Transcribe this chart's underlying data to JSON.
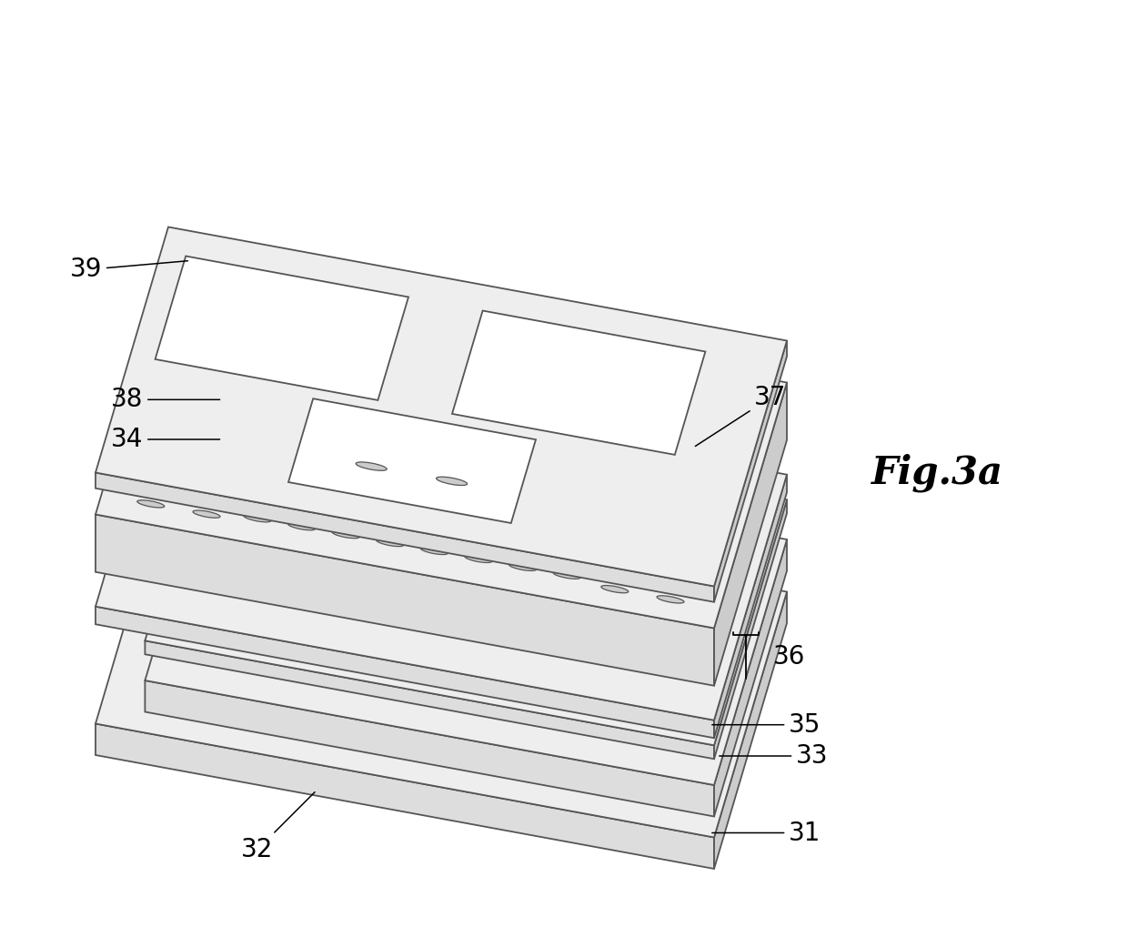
{
  "fig_label": "Fig.3a",
  "fig_label_fontsize": 30,
  "background_color": "#ffffff",
  "line_color": "#555555",
  "face_color_top": "#eeeeee",
  "face_color_side_right": "#cccccc",
  "face_color_side_front": "#dddddd",
  "hole_fill": "#bbbbbb",
  "label_fontsize": 20
}
